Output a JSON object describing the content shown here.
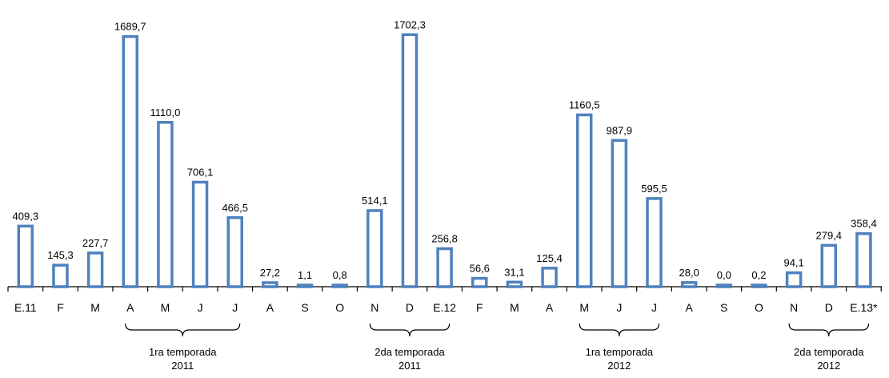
{
  "chart_data": {
    "type": "bar",
    "categories": [
      "E.11",
      "F",
      "M",
      "A",
      "M",
      "J",
      "J",
      "A",
      "S",
      "O",
      "N",
      "D",
      "E.12",
      "F",
      "M",
      "A",
      "M",
      "J",
      "J",
      "A",
      "S",
      "O",
      "N",
      "D",
      "E.13*"
    ],
    "values": [
      409.3,
      145.3,
      227.7,
      1689.7,
      1110.0,
      706.1,
      466.5,
      27.2,
      1.1,
      0.8,
      514.1,
      1702.3,
      256.8,
      56.6,
      31.1,
      125.4,
      1160.5,
      987.9,
      595.5,
      28.0,
      0.0,
      0.2,
      94.1,
      279.4,
      358.4
    ],
    "value_labels": [
      "409,3",
      "145,3",
      "227,7",
      "1689,7",
      "1110,0",
      "706,1",
      "466,5",
      "27,2",
      "1,1",
      "0,8",
      "514,1",
      "1702,3",
      "256,8",
      "56,6",
      "31,1",
      "125,4",
      "1160,5",
      "987,9",
      "595,5",
      "28,0",
      "0,0",
      "0,2",
      "94,1",
      "279,4",
      "358,4"
    ],
    "ylim": [
      0,
      1720
    ],
    "bar_color": "#4f81bd",
    "groups": [
      {
        "line1": "1ra  temporada",
        "line2": "2011",
        "start": 3,
        "end": 6
      },
      {
        "line1": "2da  temporada",
        "line2": "2011",
        "start": 10,
        "end": 12
      },
      {
        "line1": "1ra  temporada",
        "line2": "2012",
        "start": 16,
        "end": 18
      },
      {
        "line1": "2da  temporada",
        "line2": "2012",
        "start": 22,
        "end": 24
      }
    ]
  }
}
